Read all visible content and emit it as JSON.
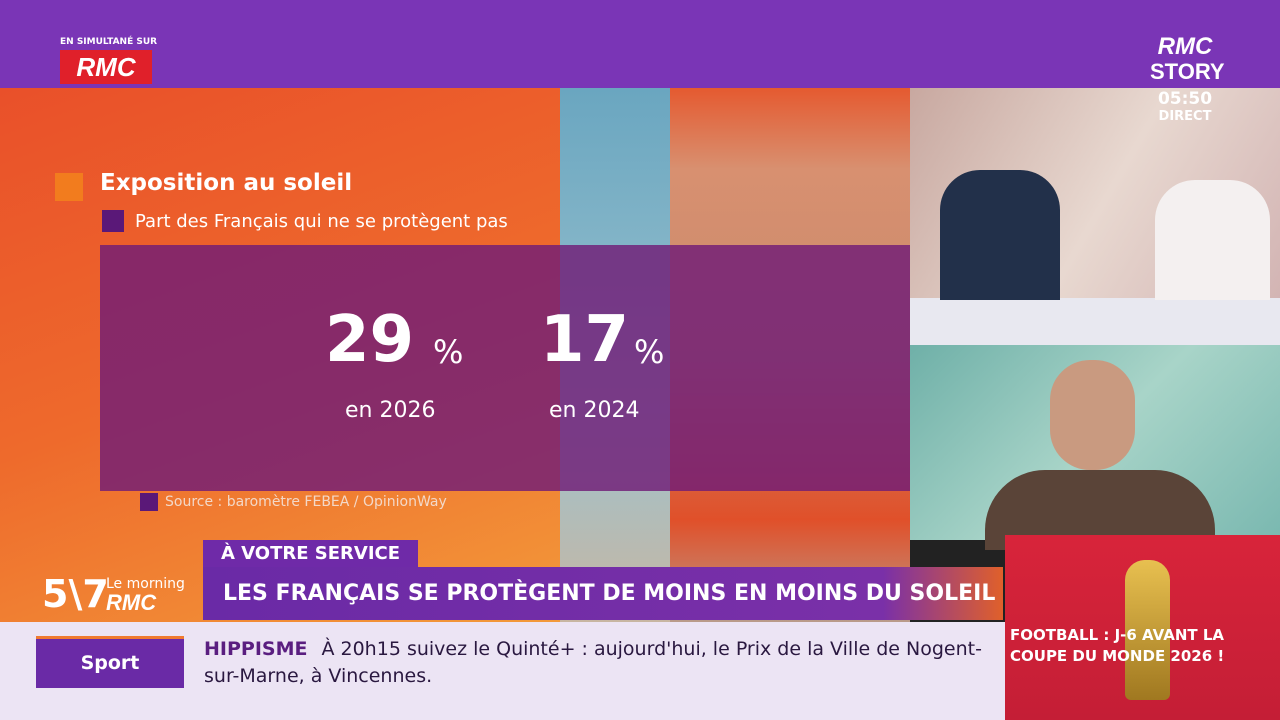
{
  "channel": {
    "simulcast_label": "EN SIMULTANÉ SUR",
    "simulcast_logo": "RMC",
    "logo_line1": "RMC",
    "logo_line2": "STORY",
    "time": "05:50",
    "status": "DIRECT"
  },
  "infographic": {
    "title": "Exposition au soleil",
    "subtitle": "Part des Français qui ne se protègent pas",
    "stats": [
      {
        "value": "29",
        "unit": "%",
        "label": "en 2026"
      },
      {
        "value": "17",
        "unit": "%",
        "label": "en 2024"
      }
    ],
    "source": "Source : baromètre FEBEA / OpinionWay"
  },
  "banner": {
    "tag": "À VOTRE SERVICE",
    "headline": "LES FRANÇAIS SE PROTÈGENT DE MOINS EN MOINS DU SOLEIL"
  },
  "show_logo": {
    "number": "5\\7",
    "line1": "Le morning",
    "line2": "RMC"
  },
  "ticker": {
    "section": "Sport",
    "topic": "HIPPISME",
    "text": "À 20h15 suivez le Quinté+ : aujourd'hui, le Prix de la Ville de Nogent-sur-Marne, à Vincennes."
  },
  "promo": {
    "text": "FOOTBALL : J-6 AVANT LA COUPE DU MONDE 2026 !"
  }
}
